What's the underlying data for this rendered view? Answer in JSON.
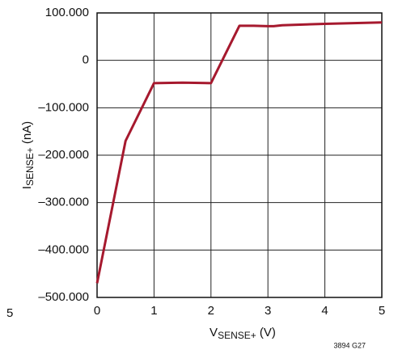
{
  "chart_data": {
    "type": "line",
    "x": [
      0,
      0.5,
      1,
      1.5,
      2,
      2.5,
      2.75,
      3,
      3.1,
      3.25,
      4,
      5
    ],
    "values": [
      -470,
      -170,
      -48,
      -47,
      -48,
      73,
      73,
      72,
      72,
      74,
      77,
      80
    ],
    "color": "#a6192e",
    "xlim": [
      0,
      5
    ],
    "xticks": [
      0,
      1,
      2,
      3,
      4,
      5
    ],
    "ylim": [
      -500,
      100
    ],
    "yticks": [
      {
        "value": -500,
        "label": "–500.000"
      },
      {
        "value": -400,
        "label": "–400.000"
      },
      {
        "value": -300,
        "label": "–300.000"
      },
      {
        "value": -200,
        "label": "–200.000"
      },
      {
        "value": -100,
        "label": "–100.000"
      },
      0,
      {
        "value": 100,
        "label": "100.000"
      }
    ],
    "grid": true,
    "xlabel": {
      "main": "V",
      "sub": "SENSE+",
      "unit": " (V)"
    },
    "ylabel": {
      "main": "I",
      "sub": "SENSE+",
      "unit": "  (nA)"
    },
    "note": "3894 G27",
    "annotations": [
      "5"
    ]
  }
}
